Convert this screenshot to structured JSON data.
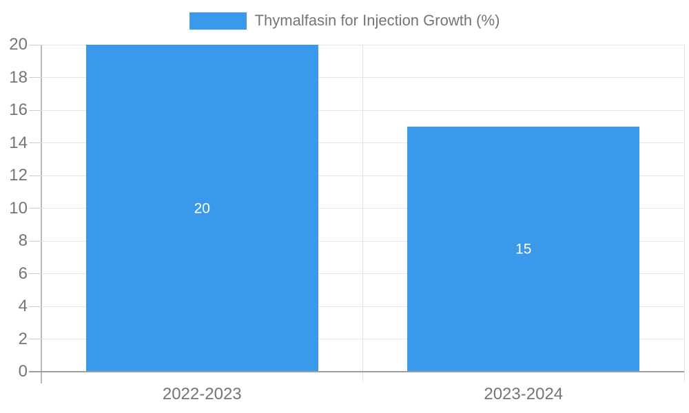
{
  "chart_data": {
    "type": "bar",
    "title": "",
    "series_label": "Thymalfasin for Injection Growth (%)",
    "categories": [
      "2022-2023",
      "2023-2024"
    ],
    "values": [
      20,
      15
    ],
    "value_labels": [
      "20",
      "15"
    ],
    "bar_color": "#3B99EC",
    "value_label_color": "#ffffff",
    "xlabel": "",
    "ylabel": "",
    "ylim": [
      0,
      20
    ],
    "yticks": [
      0,
      2,
      4,
      6,
      8,
      10,
      12,
      14,
      16,
      18,
      20
    ],
    "grid": true,
    "legend_position": "top"
  }
}
